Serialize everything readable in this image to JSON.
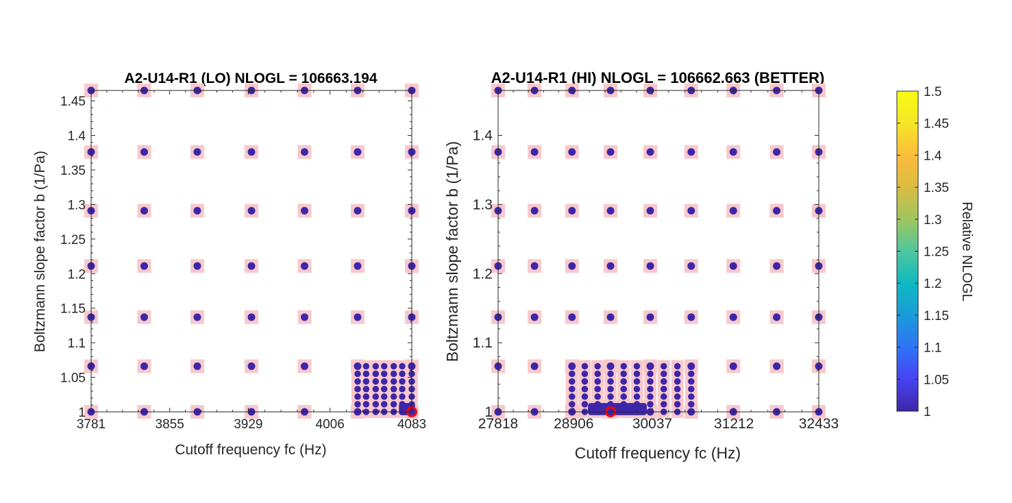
{
  "chart_data": [
    {
      "type": "scatter",
      "title": "A2-U14-R1 (LO) NLOGL = 106663.194",
      "xlabel": "Cutoff frequency fc (Hz)",
      "ylabel": "Boltzmann slope factor b (1/Pa)",
      "xlim": [
        3781,
        4083
      ],
      "ylim": [
        1,
        1.465
      ],
      "xticks": [
        3781,
        3855,
        3929,
        4006,
        4083
      ],
      "xtick_labels": [
        "3781",
        "3855",
        "3929",
        "4006",
        "4083"
      ],
      "yticks": [
        1,
        1.05,
        1.1,
        1.15,
        1.2,
        1.25,
        1.3,
        1.35,
        1.4,
        1.45
      ],
      "ytick_labels": [
        "1",
        "1.05",
        "1.1",
        "1.15",
        "1.2",
        "1.25",
        "1.3",
        "1.35",
        "1.4",
        "1.45"
      ],
      "grid": false,
      "coarse_x": [
        3781,
        3831,
        3881,
        3932,
        3982,
        4032,
        4083
      ],
      "coarse_y": [
        1,
        1.066,
        1.137,
        1.211,
        1.291,
        1.376,
        1.465
      ],
      "fine_x": [
        4032,
        4040,
        4049,
        4057,
        4066,
        4074,
        4083
      ],
      "fine_y": [
        1,
        1.011,
        1.022,
        1.033,
        1.044,
        1.055,
        1.066
      ],
      "dense_x": [
        4074,
        4077,
        4080,
        4083
      ],
      "dense_y": [
        1,
        1.004,
        1.008
      ],
      "best": {
        "x": 4083,
        "y": 1
      },
      "color_value": 1,
      "marker_color": "#3e26a8",
      "square_color": "#f7c9cc",
      "best_color": "#ff0000"
    },
    {
      "type": "scatter",
      "title": "A2-U14-R1 (HI) NLOGL = 106662.663 (BETTER)",
      "xlabel": "Cutoff frequency fc (Hz)",
      "ylabel": "Boltzmann slope factor b (1/Pa)",
      "xlim": [
        27818,
        32433
      ],
      "ylim": [
        1,
        1.465
      ],
      "xticks": [
        27818,
        28906,
        30037,
        31212,
        32433
      ],
      "xtick_labels": [
        "27818",
        "28906",
        "30037",
        "31212",
        "32433"
      ],
      "yticks": [
        1,
        1.1,
        1.2,
        1.3,
        1.4
      ],
      "ytick_labels": [
        "1",
        "1.1",
        "1.2",
        "1.3",
        "1.4"
      ],
      "grid": false,
      "coarse_x": [
        27818,
        28342,
        28881,
        29436,
        30008,
        30597,
        31203,
        31827,
        32433
      ],
      "coarse_y": [
        1,
        1.066,
        1.137,
        1.211,
        1.291,
        1.376,
        1.465
      ],
      "fine_x": [
        28881,
        29065,
        29250,
        29436,
        29625,
        29815,
        30008,
        30202,
        30398,
        30597
      ],
      "fine_y": [
        1,
        1.011,
        1.022,
        1.033,
        1.044,
        1.055,
        1.066
      ],
      "dense_x": [
        29158,
        29250,
        29343,
        29436,
        29530,
        29625,
        29720,
        29815,
        29911
      ],
      "dense_y": [
        1,
        1.004,
        1.008
      ],
      "best": {
        "x": 29436,
        "y": 1
      },
      "color_value": 1,
      "marker_color": "#3e26a8",
      "square_color": "#f7c9cc",
      "best_color": "#ff0000"
    }
  ],
  "colorbar": {
    "label": "Relative NLOGL",
    "lim": [
      1,
      1.5
    ],
    "ticks": [
      1,
      1.05,
      1.1,
      1.15,
      1.2,
      1.25,
      1.3,
      1.35,
      1.4,
      1.45,
      1.5
    ],
    "tick_labels": [
      "1",
      "1.05",
      "1.1",
      "1.15",
      "1.2",
      "1.25",
      "1.3",
      "1.35",
      "1.4",
      "1.45",
      "1.5"
    ],
    "colormap": "parula",
    "colors": [
      "#3e26a8",
      "#4743f2",
      "#2f74f5",
      "#1a9bd9",
      "#0eb9c2",
      "#4fc69e",
      "#9fc65e",
      "#dbbb41",
      "#fdbd3c",
      "#f5e626",
      "#f9fb15"
    ]
  }
}
